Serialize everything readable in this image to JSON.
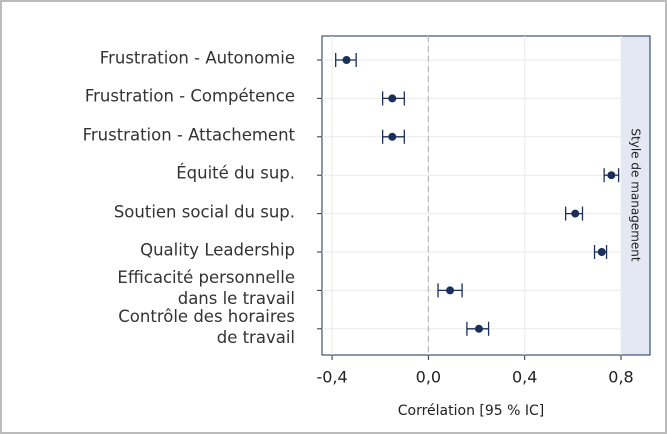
{
  "chart_data": {
    "type": "forest",
    "categories": [
      "Frustration - Autonomie",
      "Frustration - Compétence",
      "Frustration - Attachement",
      "Équité du sup.",
      "Soutien social du sup.",
      "Quality Leadership",
      "Efficacité personnelle\ndans le travail",
      "Contrôle des horaires\nde travail"
    ],
    "values": [
      -0.34,
      -0.15,
      -0.15,
      0.76,
      0.61,
      0.72,
      0.09,
      0.21
    ],
    "ci_low": [
      -0.385,
      -0.19,
      -0.19,
      0.73,
      0.57,
      0.69,
      0.04,
      0.16
    ],
    "ci_high": [
      -0.3,
      -0.1,
      -0.1,
      0.79,
      0.64,
      0.74,
      0.14,
      0.25
    ],
    "color": "#1a2f5a",
    "xlim": [
      -0.5,
      0.8
    ],
    "xticks": [
      {
        "value": -0.4,
        "label": "-0,4"
      },
      {
        "value": 0,
        "label": "0,0"
      },
      {
        "value": 0.4,
        "label": "0,4"
      },
      {
        "value": 0.8,
        "label": "0,8"
      }
    ],
    "reference_line": 0,
    "grid": true,
    "xlabel": "Corrélation [95 % IC]",
    "panel_label": "Style de management"
  }
}
